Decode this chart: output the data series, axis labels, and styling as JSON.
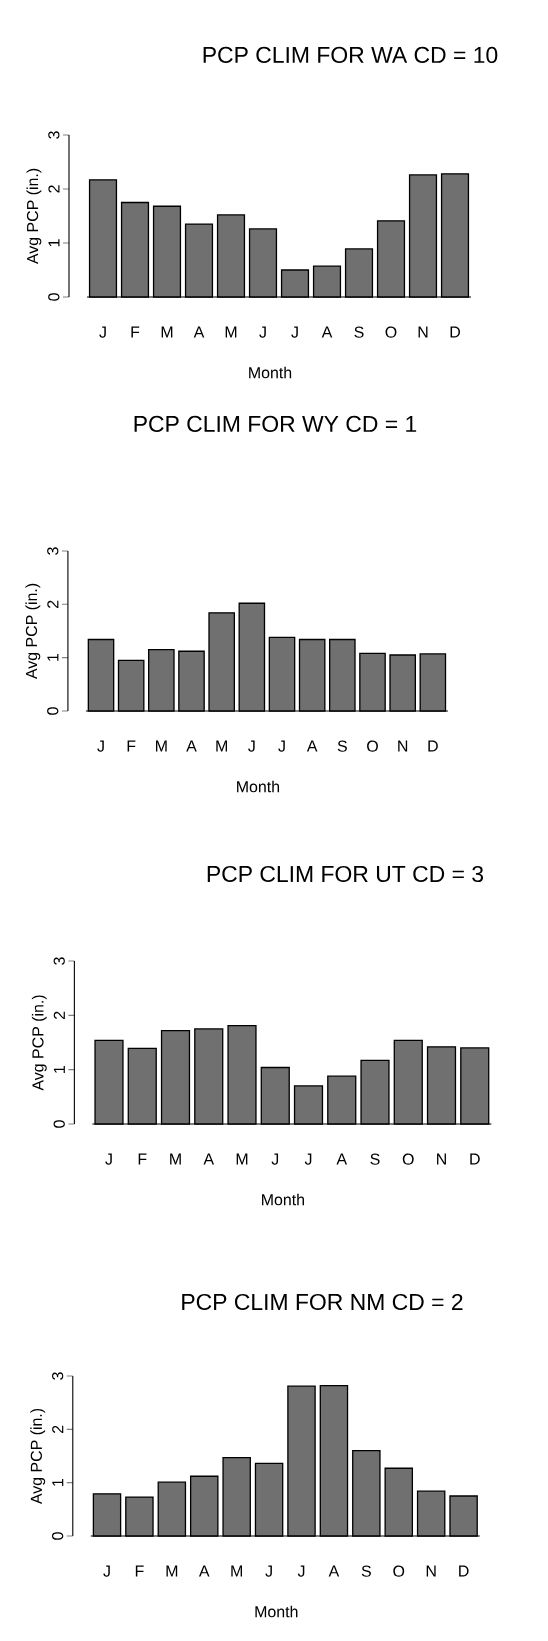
{
  "chart_data": [
    {
      "type": "bar",
      "title": "PCP CLIM FOR WA CD = 10",
      "xlabel": "Month",
      "ylabel": "Avg PCP (in.)",
      "categories": [
        "J",
        "F",
        "M",
        "A",
        "M",
        "J",
        "J",
        "A",
        "S",
        "O",
        "N",
        "D"
      ],
      "values": [
        2.17,
        1.75,
        1.68,
        1.35,
        1.52,
        1.26,
        0.5,
        0.57,
        0.89,
        1.41,
        2.26,
        2.28
      ],
      "color": "#707070",
      "ylim": [
        0,
        3
      ],
      "yticks": [
        0,
        1,
        2,
        3
      ]
    },
    {
      "type": "bar",
      "title": "PCP CLIM FOR WY CD = 1",
      "xlabel": "Month",
      "ylabel": "Avg PCP (in.)",
      "categories": [
        "J",
        "F",
        "M",
        "A",
        "M",
        "J",
        "J",
        "A",
        "S",
        "O",
        "N",
        "D"
      ],
      "values": [
        1.34,
        0.95,
        1.15,
        1.12,
        1.84,
        2.02,
        1.38,
        1.34,
        1.34,
        1.08,
        1.05,
        1.07
      ],
      "color": "#707070",
      "ylim": [
        0,
        3
      ],
      "yticks": [
        0,
        1,
        2,
        3
      ]
    },
    {
      "type": "bar",
      "title": "PCP CLIM FOR UT CD = 3",
      "xlabel": "Month",
      "ylabel": "Avg PCP (in.)",
      "categories": [
        "J",
        "F",
        "M",
        "A",
        "M",
        "J",
        "J",
        "A",
        "S",
        "O",
        "N",
        "D"
      ],
      "values": [
        1.54,
        1.39,
        1.72,
        1.75,
        1.81,
        1.04,
        0.7,
        0.88,
        1.17,
        1.54,
        1.42,
        1.4
      ],
      "color": "#707070",
      "ylim": [
        0,
        3
      ],
      "yticks": [
        0,
        1,
        2,
        3
      ]
    },
    {
      "type": "bar",
      "title": "PCP CLIM FOR NM CD = 2",
      "xlabel": "Month",
      "ylabel": "Avg PCP (in.)",
      "categories": [
        "J",
        "F",
        "M",
        "A",
        "M",
        "J",
        "J",
        "A",
        "S",
        "O",
        "N",
        "D"
      ],
      "values": [
        0.79,
        0.73,
        1.01,
        1.12,
        1.47,
        1.36,
        2.81,
        2.82,
        1.6,
        1.27,
        0.84,
        0.75
      ],
      "color": "#707070",
      "ylim": [
        0,
        3
      ],
      "yticks": [
        0,
        1,
        2,
        3
      ]
    }
  ]
}
